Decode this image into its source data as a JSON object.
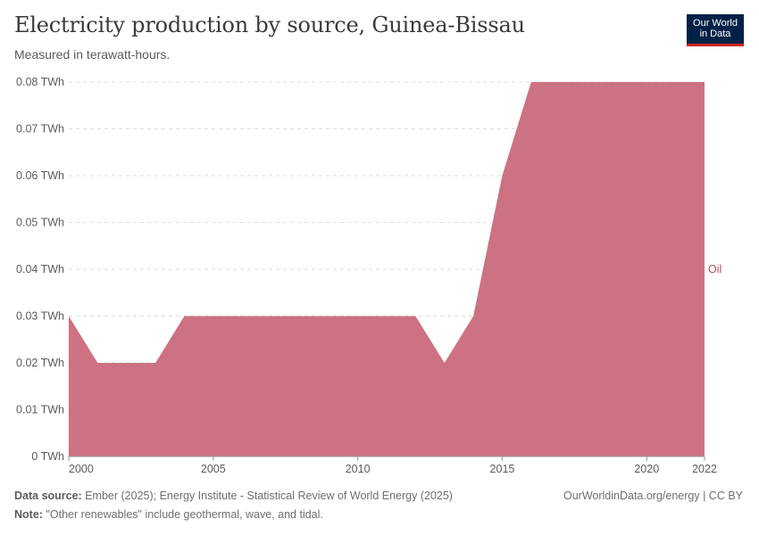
{
  "header": {
    "title": "Electricity production by source, Guinea-Bissau",
    "subtitle": "Measured in terawatt-hours.",
    "logo_line1": "Our World",
    "logo_line2": "in Data"
  },
  "footer": {
    "source_label": "Data source:",
    "source_text": "Ember (2025); Energy Institute - Statistical Review of World Energy (2025)",
    "note_label": "Note:",
    "note_text": "\"Other renewables\" include geothermal, wave, and tidal.",
    "credit": "OurWorldinData.org/energy | CC BY"
  },
  "colors": {
    "oil": "#c86677",
    "oil_label": "#c0485f",
    "grid": "#dddddd",
    "axis_text": "#5b5b5b"
  },
  "chart_data": {
    "type": "area",
    "title": "Electricity production by source, Guinea-Bissau",
    "ylabel": "TWh",
    "ylim": [
      0,
      0.08
    ],
    "xlim": [
      2000,
      2022
    ],
    "x_ticks": [
      "2000",
      "2005",
      "2010",
      "2015",
      "2020",
      "2022"
    ],
    "y_ticks": [
      "0 TWh",
      "0.01 TWh",
      "0.02 TWh",
      "0.03 TWh",
      "0.04 TWh",
      "0.05 TWh",
      "0.06 TWh",
      "0.07 TWh",
      "0.08 TWh"
    ],
    "x": [
      2000,
      2001,
      2002,
      2003,
      2004,
      2005,
      2006,
      2007,
      2008,
      2009,
      2010,
      2011,
      2012,
      2013,
      2014,
      2015,
      2016,
      2017,
      2018,
      2019,
      2020,
      2021,
      2022
    ],
    "series": [
      {
        "name": "Oil",
        "values": [
          0.03,
          0.02,
          0.02,
          0.02,
          0.03,
          0.03,
          0.03,
          0.03,
          0.03,
          0.03,
          0.03,
          0.03,
          0.03,
          0.02,
          0.03,
          0.06,
          0.08,
          0.08,
          0.08,
          0.08,
          0.08,
          0.08,
          0.08
        ]
      }
    ]
  }
}
